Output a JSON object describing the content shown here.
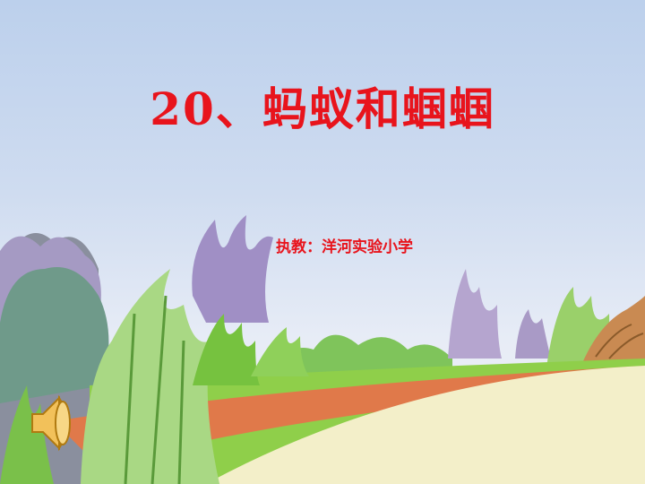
{
  "slide": {
    "title": "20、蚂蚁和蝈蝈",
    "author_line": "执教：洋河实验小学"
  },
  "icons": {
    "speaker": "speaker-icon"
  },
  "colors": {
    "title": "#e8141c",
    "sky_top": "#bcd0ec",
    "path": "#f3efc9",
    "grass": "#8fcf4a",
    "dirt": "#e0794a"
  }
}
